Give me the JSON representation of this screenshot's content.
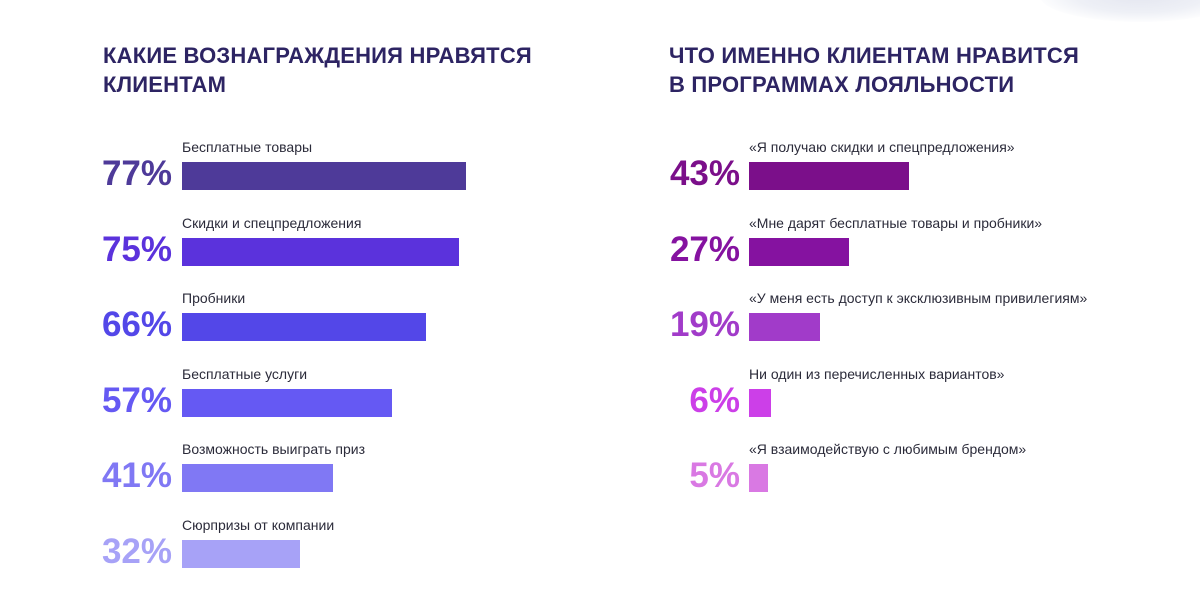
{
  "colors": {
    "title": "#2d2463",
    "label": "#2b2b3a",
    "corner_blur": "#e4e6f0"
  },
  "chart_data": [
    {
      "type": "bar",
      "orientation": "horizontal",
      "title": "КАКИЕ ВОЗНАГРАЖДЕНИЯ НРАВЯТСЯ\nКЛИЕНТАМ",
      "xlim": [
        0,
        100
      ],
      "categories": [
        "Бесплатные товары",
        "Скидки и спецпредложения",
        "Пробники",
        "Бесплатные услуги",
        "Возможность выиграть приз",
        "Сюрпризы от компании"
      ],
      "values": [
        77,
        75,
        66,
        57,
        41,
        32
      ],
      "value_labels": [
        "77%",
        "75%",
        "66%",
        "57%",
        "41%",
        "32%"
      ],
      "colors": [
        "#4e3a99",
        "#5b32dc",
        "#5347e8",
        "#6559f3",
        "#8078f4",
        "#a7a2f7"
      ]
    },
    {
      "type": "bar",
      "orientation": "horizontal",
      "title": "ЧТО ИМЕННО КЛИЕНТАМ НРАВИТСЯ\nВ ПРОГРАММАХ ЛОЯЛЬНОСТИ",
      "xlim": [
        0,
        100
      ],
      "categories": [
        "«Я получаю скидки и спецпредложения»",
        "«Мне дарят бесплатные товары и пробники»",
        "«У меня есть доступ к эксклюзивным привилегиям»",
        "Ни один из перечисленных вариантов»",
        "«Я взаимодействую с любимым брендом»"
      ],
      "values": [
        43,
        27,
        19,
        6,
        5
      ],
      "value_labels": [
        "43%",
        "27%",
        "19%",
        "6%",
        "5%"
      ],
      "colors": [
        "#7b0f8a",
        "#8512a0",
        "#a13bc9",
        "#cc3fe8",
        "#d979e3"
      ]
    }
  ]
}
